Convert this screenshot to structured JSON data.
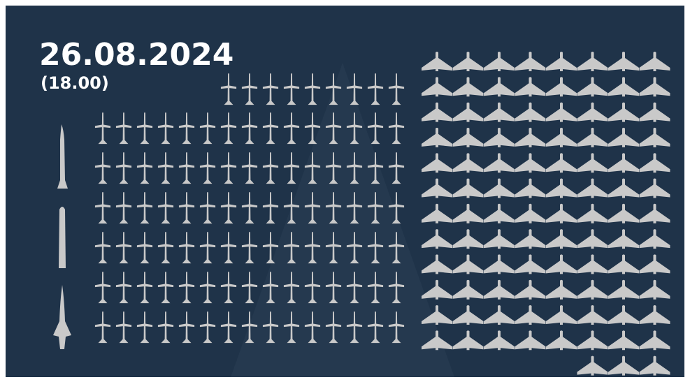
{
  "header": {
    "date": "26.08.2024",
    "time": "(18.00)"
  }
}
